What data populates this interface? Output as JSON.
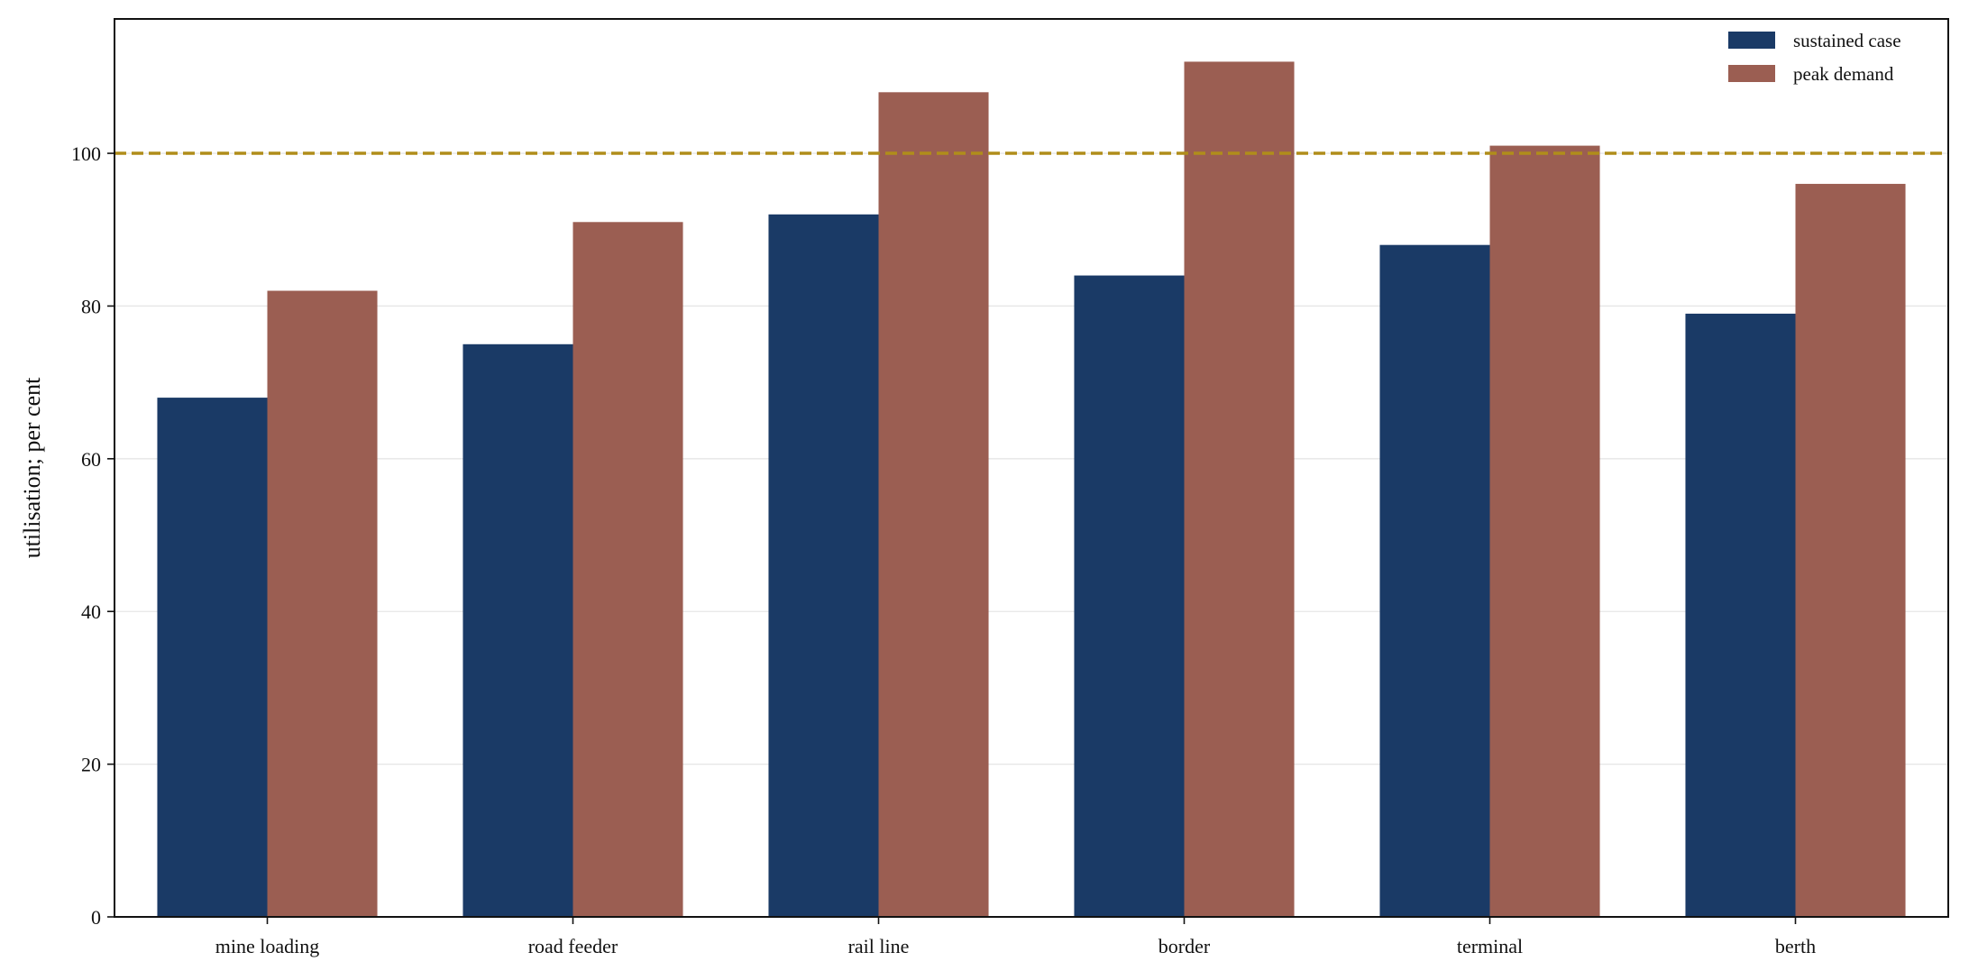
{
  "chart_data": {
    "type": "bar",
    "title": "",
    "xlabel": "",
    "ylabel": "utilisation; per cent",
    "categories": [
      "mine loading",
      "road feeder",
      "rail line",
      "border",
      "terminal",
      "berth"
    ],
    "series": [
      {
        "name": "sustained case",
        "color": "#1a3a66",
        "values": [
          68,
          75,
          92,
          84,
          88,
          79
        ]
      },
      {
        "name": "peak demand",
        "color": "#9b5e52",
        "values": [
          82,
          91,
          108,
          112,
          101,
          96
        ]
      }
    ],
    "ylim": [
      0,
      117.6
    ],
    "yticks": [
      0,
      20,
      40,
      60,
      80,
      100
    ],
    "ytick_labels": [
      "0",
      "20",
      "40",
      "60",
      "80",
      "100"
    ],
    "grid": "horizontal",
    "legend_position": "top-right",
    "reference_line": {
      "value": 100,
      "color": "#b08d1a",
      "style": "dashed"
    }
  }
}
